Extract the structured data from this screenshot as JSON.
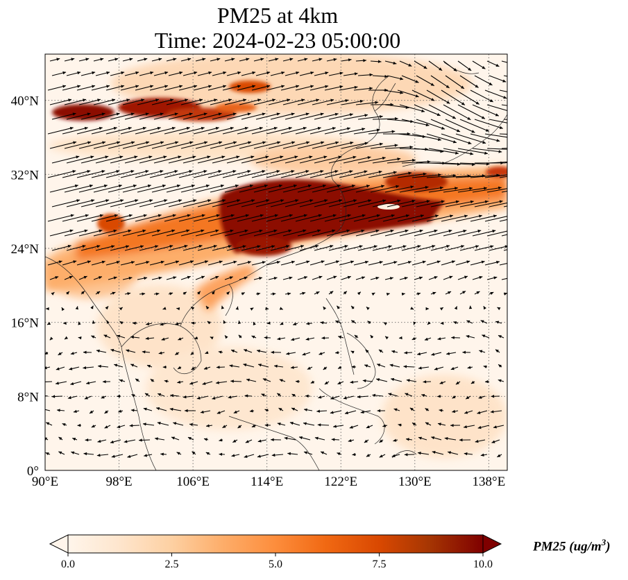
{
  "title": {
    "line1": "PM25 at 4km",
    "line2": "Time: 2024-02-23 05:00:00"
  },
  "map": {
    "lon_range": [
      90,
      140
    ],
    "lat_range": [
      0,
      45
    ],
    "lon_ticks": [
      {
        "value": 90,
        "label": "90°E"
      },
      {
        "value": 98,
        "label": "98°E"
      },
      {
        "value": 106,
        "label": "106°E"
      },
      {
        "value": 114,
        "label": "114°E"
      },
      {
        "value": 122,
        "label": "122°E"
      },
      {
        "value": 130,
        "label": "130°E"
      },
      {
        "value": 138,
        "label": "138°E"
      }
    ],
    "lat_ticks": [
      {
        "value": 0,
        "label": "0°"
      },
      {
        "value": 8,
        "label": "8°N"
      },
      {
        "value": 16,
        "label": "16°N"
      },
      {
        "value": 24,
        "label": "24°N"
      },
      {
        "value": 32,
        "label": "32°N"
      },
      {
        "value": 40,
        "label": "40°N"
      }
    ],
    "gridlines": true,
    "wind_vectors": true,
    "background_color": "#fff5eb"
  },
  "colorbar": {
    "min": 0.0,
    "max": 10.0,
    "extend": "both",
    "ticks": [
      "0.0",
      "2.5",
      "5.0",
      "7.5",
      "10.0"
    ],
    "label": "PM25 (ug/m",
    "label_sup": "3",
    "label_close": ")",
    "colormap": [
      "#fff5eb",
      "#fee6ce",
      "#fdd0a2",
      "#fdae6b",
      "#fd8d3c",
      "#f16913",
      "#d94801",
      "#a63603",
      "#7f0000"
    ]
  }
}
